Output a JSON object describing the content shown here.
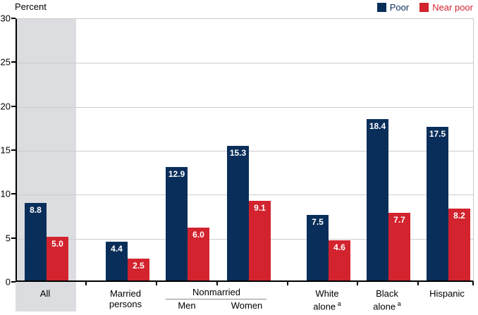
{
  "y_axis": {
    "title": "Percent",
    "ticks": [
      "30",
      "25",
      "20",
      "15",
      "10",
      "5",
      "0"
    ]
  },
  "legend": {
    "items": [
      {
        "label": "Poor",
        "color": "#0a2e5a"
      },
      {
        "label": "Near poor",
        "color": "#d2232e"
      }
    ]
  },
  "x_axis": {
    "labels": {
      "all": "All",
      "married_1": "Married",
      "married_2": "persons",
      "nonmarried": "Nonmarried",
      "men": "Men",
      "women": "Women",
      "white_1": "White",
      "white_2": "alone",
      "white_footnote": "a",
      "black_1": "Black",
      "black_2": "alone",
      "black_footnote": "a",
      "hispanic": "Hispanic"
    }
  },
  "chart_data": {
    "type": "bar",
    "title": "Percent",
    "ylabel": "Percent",
    "ylim": [
      0,
      30
    ],
    "ytick_interval": 5,
    "grid": true,
    "legend_position": "top-right",
    "categories": [
      "All",
      "Married persons",
      "Nonmarried Men",
      "Nonmarried Women",
      "White alone",
      "Black alone",
      "Hispanic"
    ],
    "series": [
      {
        "name": "Poor",
        "color": "#0a2e5a",
        "values": [
          8.8,
          4.4,
          12.9,
          15.3,
          7.5,
          18.4,
          17.5
        ],
        "labels": [
          "8.8",
          "4.4",
          "12.9",
          "15.3",
          "7.5",
          "18.4",
          "17.5"
        ]
      },
      {
        "name": "Near poor",
        "color": "#d2232e",
        "values": [
          5.0,
          2.5,
          6.0,
          9.1,
          4.6,
          7.7,
          8.2
        ],
        "labels": [
          "5.0",
          "2.5",
          "6.0",
          "9.1",
          "4.6",
          "7.7",
          "8.2"
        ]
      }
    ],
    "highlighted_category": "All",
    "footnote_marker": "a"
  },
  "colors": {
    "poor": "#0a2e5a",
    "near_poor": "#d2232e",
    "band": "#dcdde0",
    "grid": "#cccccc",
    "axis": "#000000"
  }
}
